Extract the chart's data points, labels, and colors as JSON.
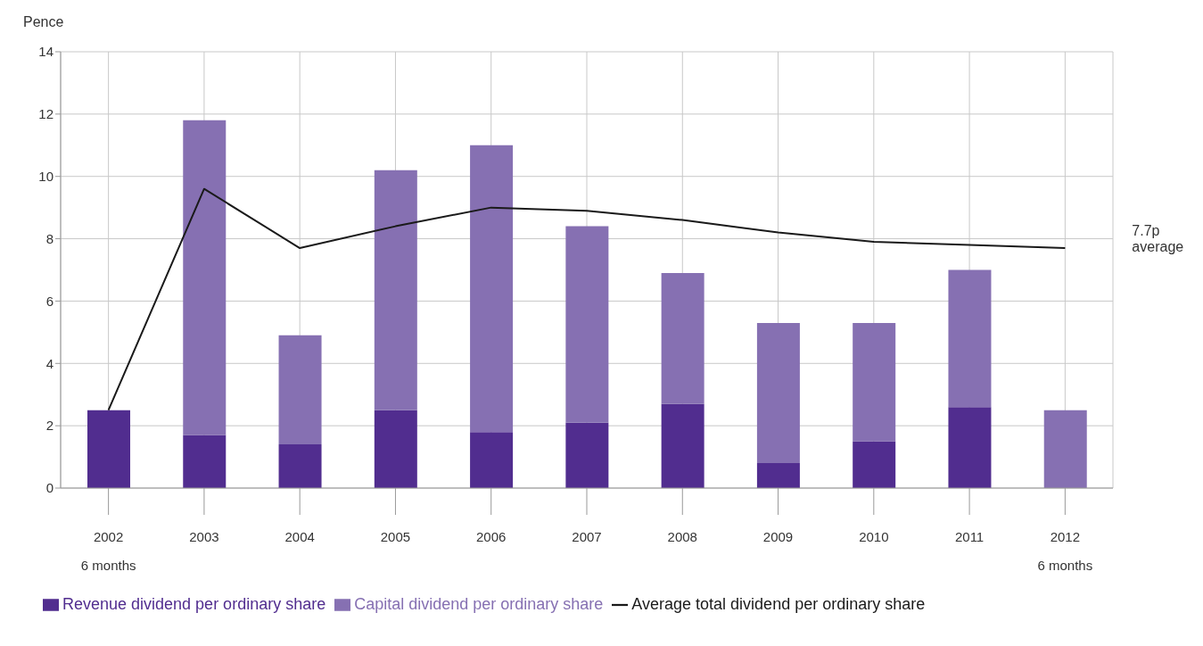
{
  "chart_data": {
    "type": "bar",
    "stacked": true,
    "ylabel": "Pence",
    "categories": [
      "2002",
      "2003",
      "2004",
      "2005",
      "2006",
      "2007",
      "2008",
      "2009",
      "2010",
      "2011",
      "2012"
    ],
    "series": [
      {
        "name": "Revenue dividend per ordinary share",
        "color": "#512d8f",
        "values": [
          2.5,
          1.7,
          1.4,
          2.5,
          1.8,
          2.1,
          2.7,
          0.8,
          1.5,
          2.6,
          0
        ]
      },
      {
        "name": "Capital dividend per ordinary share",
        "color": "#8670b2",
        "values": [
          0,
          10.1,
          3.5,
          7.7,
          9.2,
          6.3,
          4.2,
          4.5,
          3.8,
          4.4,
          2.5
        ]
      },
      {
        "name": "Average total dividend per ordinary share",
        "type": "line",
        "color": "#1a1a1a",
        "values": [
          2.5,
          9.6,
          7.7,
          8.4,
          9.0,
          8.9,
          8.6,
          8.2,
          7.9,
          7.8,
          7.7
        ]
      }
    ],
    "ylim": [
      0,
      14
    ],
    "yticks": [
      0,
      2,
      4,
      6,
      8,
      10,
      12,
      14
    ],
    "grid": true,
    "legend": "bottom",
    "marker": "none",
    "annotations": [
      "6 months",
      "6 months",
      "7.7p average"
    ]
  }
}
